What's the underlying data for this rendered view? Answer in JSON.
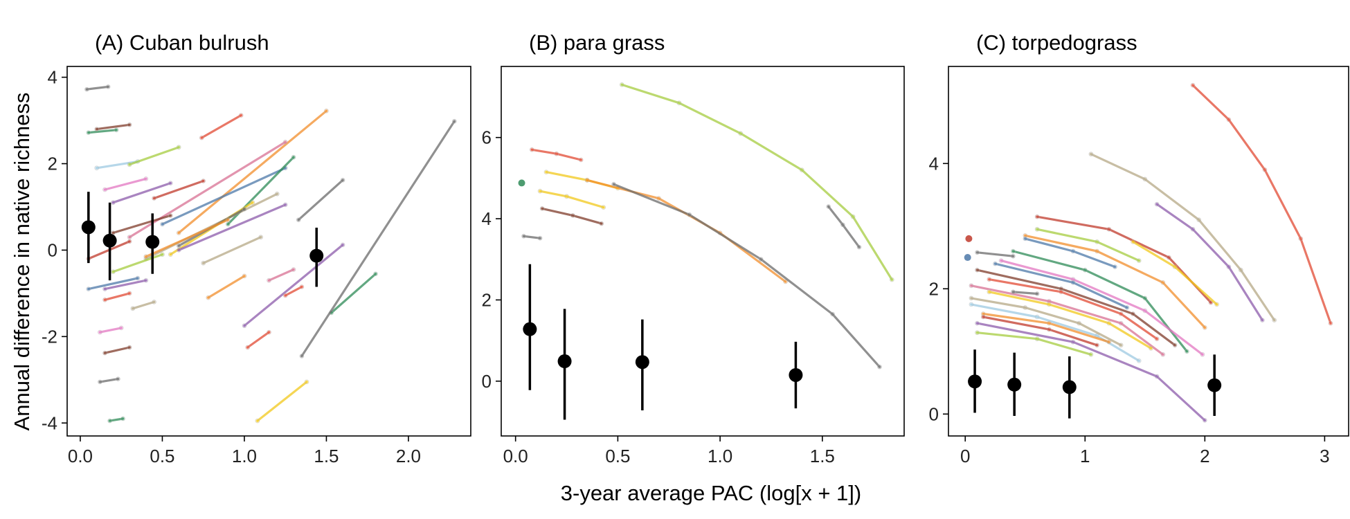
{
  "x_axis_label": "3-year average PAC (log[x + 1])",
  "y_axis_label": "Annual difference in native richness",
  "palette": [
    "#e24a33",
    "#f28e2b",
    "#a6cc3f",
    "#4c78a8",
    "#8c5bab",
    "#e377c2",
    "#6b6b6b",
    "#2e8b57",
    "#f2c81b",
    "#9ecae1",
    "#b5a886",
    "#c0392b",
    "#d87093",
    "#7f3b2a"
  ],
  "chart_data": [
    {
      "type": "line",
      "title": "(A) Cuban bulrush",
      "xlim": [
        -0.08,
        2.38
      ],
      "ylim": [
        -4.3,
        4.25
      ],
      "x_ticks": [
        {
          "v": 0,
          "label": "0.0"
        },
        {
          "v": 0.5,
          "label": "0.5"
        },
        {
          "v": 1,
          "label": "1.0"
        },
        {
          "v": 1.5,
          "label": "1.5"
        },
        {
          "v": 2,
          "label": "2.0"
        }
      ],
      "y_ticks": [
        {
          "v": -4,
          "label": "-4"
        },
        {
          "v": -2,
          "label": "-2"
        },
        {
          "v": 0,
          "label": "0"
        },
        {
          "v": 2,
          "label": "2"
        },
        {
          "v": 4,
          "label": "4"
        }
      ],
      "points": [
        {
          "x": 0.05,
          "y": 0.53,
          "lo": -0.3,
          "hi": 1.35
        },
        {
          "x": 0.18,
          "y": 0.22,
          "lo": -0.7,
          "hi": 1.1
        },
        {
          "x": 0.44,
          "y": 0.19,
          "lo": -0.55,
          "hi": 0.85
        },
        {
          "x": 1.44,
          "y": -0.13,
          "lo": -0.85,
          "hi": 0.52
        }
      ],
      "series": [
        {
          "c": 6,
          "x": [
            0.04,
            0.17
          ],
          "y": [
            3.72,
            3.78
          ]
        },
        {
          "c": 7,
          "x": [
            0.05,
            0.22
          ],
          "y": [
            2.72,
            2.78
          ]
        },
        {
          "c": 13,
          "x": [
            0.1,
            0.3
          ],
          "y": [
            2.8,
            2.9
          ]
        },
        {
          "c": 9,
          "x": [
            0.1,
            0.35
          ],
          "y": [
            1.9,
            2.05
          ]
        },
        {
          "c": 2,
          "x": [
            0.3,
            0.6
          ],
          "y": [
            1.98,
            2.38
          ]
        },
        {
          "c": 0,
          "x": [
            0.74,
            0.98
          ],
          "y": [
            2.6,
            3.12
          ]
        },
        {
          "c": 1,
          "x": [
            0.6,
            1.5
          ],
          "y": [
            0.4,
            3.22
          ]
        },
        {
          "c": 4,
          "x": [
            0.2,
            0.55
          ],
          "y": [
            1.1,
            1.55
          ]
        },
        {
          "c": 5,
          "x": [
            0.15,
            0.4
          ],
          "y": [
            1.4,
            1.65
          ]
        },
        {
          "c": 11,
          "x": [
            0.45,
            0.75
          ],
          "y": [
            1.2,
            1.6
          ]
        },
        {
          "c": 12,
          "x": [
            0.3,
            1.25
          ],
          "y": [
            0.3,
            2.5
          ]
        },
        {
          "c": 3,
          "x": [
            0.5,
            1.25
          ],
          "y": [
            0.6,
            1.9
          ]
        },
        {
          "c": 7,
          "x": [
            0.9,
            1.3
          ],
          "y": [
            0.6,
            2.15
          ]
        },
        {
          "c": 10,
          "x": [
            0.4,
            1.2
          ],
          "y": [
            -0.2,
            1.3
          ]
        },
        {
          "c": 8,
          "x": [
            0.55,
            1.05
          ],
          "y": [
            -0.1,
            1.1
          ]
        },
        {
          "c": 4,
          "x": [
            0.6,
            1.25
          ],
          "y": [
            0.0,
            1.05
          ]
        },
        {
          "c": 6,
          "x": [
            0.6,
            1.0
          ],
          "y": [
            0.1,
            0.95
          ]
        },
        {
          "c": 1,
          "x": [
            0.4,
            0.9
          ],
          "y": [
            -0.15,
            0.7
          ]
        },
        {
          "c": 13,
          "x": [
            0.2,
            0.55
          ],
          "y": [
            0.4,
            0.8
          ]
        },
        {
          "c": 10,
          "x": [
            0.75,
            1.1
          ],
          "y": [
            -0.3,
            0.3
          ]
        },
        {
          "c": 2,
          "x": [
            0.2,
            0.5
          ],
          "y": [
            -0.5,
            -0.1
          ]
        },
        {
          "c": 11,
          "x": [
            0.05,
            0.3
          ],
          "y": [
            -0.2,
            0.2
          ]
        },
        {
          "c": 3,
          "x": [
            0.05,
            0.35
          ],
          "y": [
            -0.9,
            -0.65
          ]
        },
        {
          "c": 4,
          "x": [
            0.15,
            0.4
          ],
          "y": [
            -0.9,
            -0.7
          ]
        },
        {
          "c": 0,
          "x": [
            0.15,
            0.3
          ],
          "y": [
            -1.15,
            -1.0
          ]
        },
        {
          "c": 10,
          "x": [
            0.32,
            0.45
          ],
          "y": [
            -1.35,
            -1.2
          ]
        },
        {
          "c": 12,
          "x": [
            1.15,
            1.3
          ],
          "y": [
            -0.7,
            -0.45
          ]
        },
        {
          "c": 1,
          "x": [
            0.78,
            1.0
          ],
          "y": [
            -1.1,
            -0.6
          ]
        },
        {
          "c": 6,
          "x": [
            1.33,
            1.6
          ],
          "y": [
            0.7,
            1.62
          ]
        },
        {
          "c": 4,
          "x": [
            1.0,
            1.6
          ],
          "y": [
            -1.75,
            0.12
          ]
        },
        {
          "c": 0,
          "x": [
            1.02,
            1.15
          ],
          "y": [
            -2.25,
            -1.9
          ]
        },
        {
          "c": 0,
          "x": [
            1.25,
            1.35
          ],
          "y": [
            -1.05,
            -0.85
          ]
        },
        {
          "c": 7,
          "x": [
            1.53,
            1.8
          ],
          "y": [
            -1.45,
            -0.55
          ]
        },
        {
          "c": 6,
          "x": [
            1.35,
            2.28
          ],
          "y": [
            -2.45,
            2.98
          ]
        },
        {
          "c": 5,
          "x": [
            0.12,
            0.25
          ],
          "y": [
            -1.9,
            -1.8
          ]
        },
        {
          "c": 13,
          "x": [
            0.15,
            0.3
          ],
          "y": [
            -2.38,
            -2.25
          ]
        },
        {
          "c": 6,
          "x": [
            0.12,
            0.23
          ],
          "y": [
            -3.05,
            -2.98
          ]
        },
        {
          "c": 7,
          "x": [
            0.18,
            0.26
          ],
          "y": [
            -3.95,
            -3.9
          ]
        },
        {
          "c": 8,
          "x": [
            1.08,
            1.38
          ],
          "y": [
            -3.95,
            -3.05
          ]
        }
      ]
    },
    {
      "type": "line",
      "title": "(B) para grass",
      "xlim": [
        -0.07,
        1.9
      ],
      "ylim": [
        -1.35,
        7.75
      ],
      "x_ticks": [
        {
          "v": 0,
          "label": "0.0"
        },
        {
          "v": 0.5,
          "label": "0.5"
        },
        {
          "v": 1,
          "label": "1.0"
        },
        {
          "v": 1.5,
          "label": "1.5"
        }
      ],
      "y_ticks": [
        {
          "v": 0,
          "label": "0"
        },
        {
          "v": 2,
          "label": "2"
        },
        {
          "v": 4,
          "label": "4"
        },
        {
          "v": 6,
          "label": "6"
        }
      ],
      "points": [
        {
          "x": 0.07,
          "y": 1.28,
          "lo": -0.22,
          "hi": 2.88
        },
        {
          "x": 0.24,
          "y": 0.49,
          "lo": -0.95,
          "hi": 1.78
        },
        {
          "x": 0.62,
          "y": 0.47,
          "lo": -0.72,
          "hi": 1.52
        },
        {
          "x": 1.37,
          "y": 0.15,
          "lo": -0.67,
          "hi": 0.97
        }
      ],
      "series": [
        {
          "c": 2,
          "x": [
            0.52,
            0.8,
            1.1,
            1.4,
            1.65,
            1.84
          ],
          "y": [
            7.3,
            6.85,
            6.1,
            5.2,
            4.05,
            2.5
          ]
        },
        {
          "c": 0,
          "x": [
            0.08,
            0.2,
            0.32
          ],
          "y": [
            5.7,
            5.6,
            5.45
          ]
        },
        {
          "c": 8,
          "x": [
            0.15,
            0.35,
            0.5
          ],
          "y": [
            5.15,
            4.95,
            4.75
          ]
        },
        {
          "c": 1,
          "x": [
            0.35,
            0.7,
            1.0,
            1.32
          ],
          "y": [
            4.95,
            4.5,
            3.65,
            2.45
          ]
        },
        {
          "c": 6,
          "x": [
            0.48,
            0.85,
            1.2,
            1.55,
            1.78
          ],
          "y": [
            4.85,
            4.1,
            3.0,
            1.65,
            0.35
          ]
        },
        {
          "c": 8,
          "x": [
            0.12,
            0.25,
            0.43
          ],
          "y": [
            4.68,
            4.55,
            4.28
          ]
        },
        {
          "c": 13,
          "x": [
            0.13,
            0.28,
            0.42
          ],
          "y": [
            4.25,
            4.08,
            3.88
          ]
        },
        {
          "c": 6,
          "x": [
            1.53,
            1.6,
            1.68
          ],
          "y": [
            4.3,
            3.85,
            3.3
          ]
        },
        {
          "c": 6,
          "x": [
            0.04,
            0.12
          ],
          "y": [
            3.57,
            3.52
          ]
        }
      ],
      "dots": [
        {
          "c": 7,
          "x": 0.03,
          "y": 4.88
        }
      ]
    },
    {
      "type": "line",
      "title": "(C) torpedograss",
      "xlim": [
        -0.14,
        3.2
      ],
      "ylim": [
        -0.35,
        5.55
      ],
      "x_ticks": [
        {
          "v": 0,
          "label": "0"
        },
        {
          "v": 1,
          "label": "1"
        },
        {
          "v": 2,
          "label": "2"
        },
        {
          "v": 3,
          "label": "3"
        }
      ],
      "y_ticks": [
        {
          "v": 0,
          "label": "0"
        },
        {
          "v": 2,
          "label": "2"
        },
        {
          "v": 4,
          "label": "4"
        }
      ],
      "points": [
        {
          "x": 0.08,
          "y": 0.52,
          "lo": 0.02,
          "hi": 1.03
        },
        {
          "x": 0.41,
          "y": 0.47,
          "lo": -0.03,
          "hi": 0.98
        },
        {
          "x": 0.87,
          "y": 0.43,
          "lo": -0.07,
          "hi": 0.92
        },
        {
          "x": 2.08,
          "y": 0.46,
          "lo": -0.03,
          "hi": 0.95
        }
      ],
      "series": [
        {
          "c": 0,
          "x": [
            1.9,
            2.2,
            2.5,
            2.8,
            3.05
          ],
          "y": [
            5.25,
            4.7,
            3.9,
            2.8,
            1.45
          ]
        },
        {
          "c": 10,
          "x": [
            1.05,
            1.5,
            1.95,
            2.3,
            2.58
          ],
          "y": [
            4.15,
            3.75,
            3.1,
            2.3,
            1.5
          ]
        },
        {
          "c": 4,
          "x": [
            1.6,
            1.9,
            2.2,
            2.48
          ],
          "y": [
            3.35,
            2.95,
            2.35,
            1.5
          ]
        },
        {
          "c": 11,
          "x": [
            0.6,
            1.2,
            1.7,
            2.05
          ],
          "y": [
            3.15,
            2.95,
            2.5,
            1.78
          ]
        },
        {
          "c": 8,
          "x": [
            1.4,
            1.75,
            2.1
          ],
          "y": [
            2.75,
            2.35,
            1.75
          ]
        },
        {
          "c": 7,
          "x": [
            0.4,
            1.0,
            1.5,
            1.85
          ],
          "y": [
            2.6,
            2.3,
            1.85,
            1.0
          ]
        },
        {
          "c": 1,
          "x": [
            0.5,
            1.1,
            1.65,
            2.0
          ],
          "y": [
            2.85,
            2.6,
            2.1,
            1.38
          ]
        },
        {
          "c": 5,
          "x": [
            0.3,
            0.9,
            1.5,
            1.98
          ],
          "y": [
            2.45,
            2.15,
            1.65,
            0.95
          ]
        },
        {
          "c": 3,
          "x": [
            0.5,
            0.9,
            1.25
          ],
          "y": [
            2.8,
            2.6,
            2.35
          ]
        },
        {
          "c": 2,
          "x": [
            0.6,
            1.1,
            1.45
          ],
          "y": [
            2.95,
            2.75,
            2.45
          ]
        },
        {
          "c": 13,
          "x": [
            0.1,
            0.8,
            1.4,
            1.75
          ],
          "y": [
            2.3,
            2.0,
            1.6,
            1.1
          ]
        },
        {
          "c": 6,
          "x": [
            0.1,
            0.4
          ],
          "y": [
            2.58,
            2.52
          ]
        },
        {
          "c": 12,
          "x": [
            0.05,
            0.7,
            1.3,
            1.65
          ],
          "y": [
            2.05,
            1.8,
            1.45,
            0.95
          ]
        },
        {
          "c": 9,
          "x": [
            0.05,
            0.6,
            1.1,
            1.45
          ],
          "y": [
            1.75,
            1.55,
            1.25,
            0.85
          ]
        },
        {
          "c": 4,
          "x": [
            0.1,
            0.9,
            1.6,
            2.0
          ],
          "y": [
            1.45,
            1.15,
            0.6,
            -0.1
          ]
        },
        {
          "c": 2,
          "x": [
            0.1,
            0.6,
            1.05
          ],
          "y": [
            1.3,
            1.2,
            0.95
          ]
        },
        {
          "c": 10,
          "x": [
            0.05,
            0.5,
            0.95,
            1.3
          ],
          "y": [
            1.85,
            1.7,
            1.45,
            1.1
          ]
        },
        {
          "c": 0,
          "x": [
            0.2,
            0.8,
            1.3,
            1.6
          ],
          "y": [
            2.15,
            1.95,
            1.6,
            1.2
          ]
        },
        {
          "c": 8,
          "x": [
            0.2,
            0.7,
            1.2,
            1.55
          ],
          "y": [
            1.95,
            1.75,
            1.45,
            1.05
          ]
        },
        {
          "c": 3,
          "x": [
            0.25,
            0.9,
            1.35
          ],
          "y": [
            2.4,
            2.1,
            1.7
          ]
        },
        {
          "c": 1,
          "x": [
            0.15,
            0.7,
            1.2
          ],
          "y": [
            1.6,
            1.45,
            1.15
          ]
        },
        {
          "c": 6,
          "x": [
            0.4,
            0.6
          ],
          "y": [
            1.95,
            1.92
          ]
        },
        {
          "c": 11,
          "x": [
            0.15,
            0.7,
            1.1
          ],
          "y": [
            1.55,
            1.35,
            1.1
          ]
        }
      ],
      "dots": [
        {
          "c": 11,
          "x": 0.03,
          "y": 2.8
        },
        {
          "c": 3,
          "x": 0.02,
          "y": 2.5
        }
      ]
    }
  ]
}
